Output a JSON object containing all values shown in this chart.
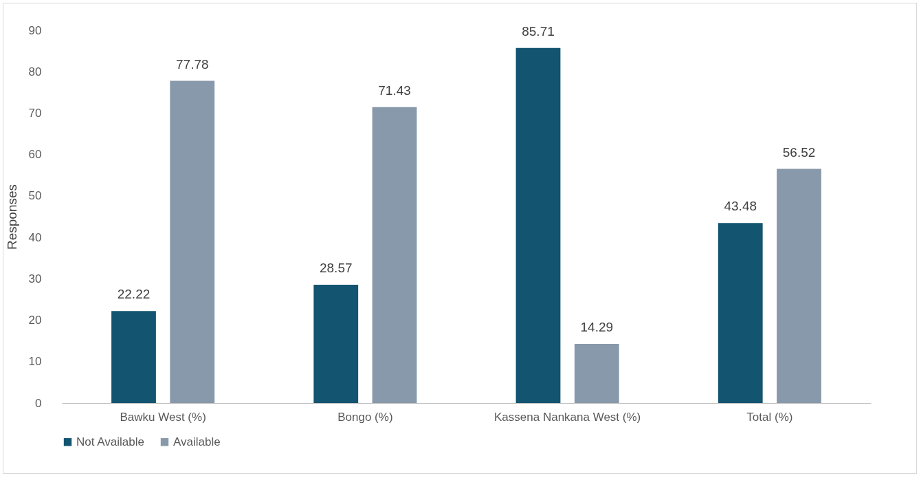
{
  "chart_data": {
    "type": "bar",
    "ylabel": "Responses",
    "categories": [
      "Bawku West (%)",
      "Bongo (%)",
      "Kassena Nankana West (%)",
      "Total (%)"
    ],
    "series": [
      {
        "name": "Not Available",
        "color": "#135470",
        "values": [
          22.22,
          28.57,
          85.71,
          43.48
        ]
      },
      {
        "name": "Available",
        "color": "#8799aa",
        "values": [
          77.78,
          71.43,
          14.29,
          56.52
        ]
      }
    ],
    "ylim": [
      0,
      90
    ],
    "yticks": [
      0,
      10,
      20,
      30,
      40,
      50,
      60,
      70,
      80,
      90
    ],
    "grid": false,
    "legend": "bottom",
    "data_labels": true
  }
}
